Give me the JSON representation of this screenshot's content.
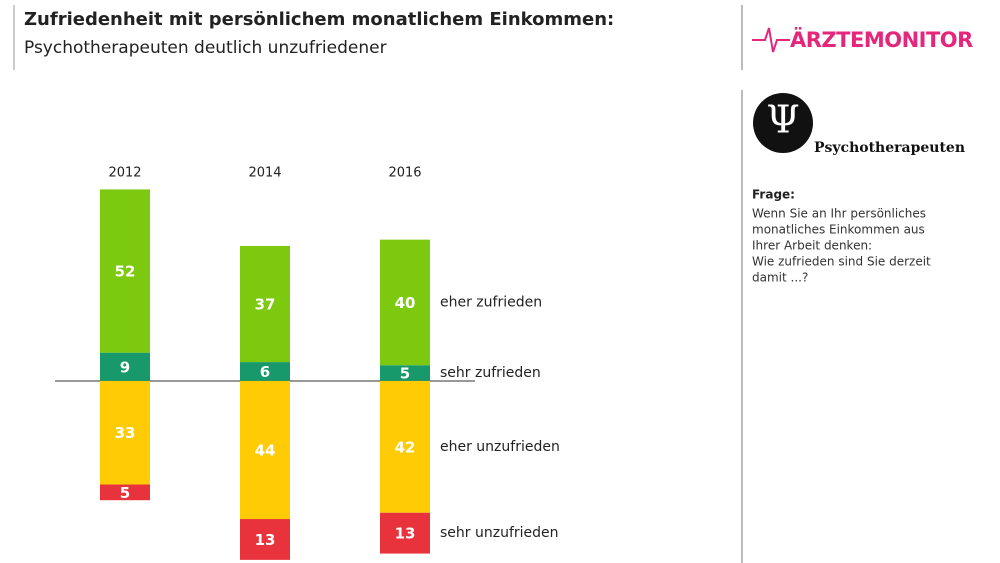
{
  "chart_data": {
    "type": "diverging_stacked_bar",
    "title": "Zufriedenheit mit persönlichem monatlichem Einkommen:",
    "subtitle": "Psychotherapeuten deutlich unzufriedener",
    "categories": [
      "2012",
      "2014",
      "2016"
    ],
    "ylim": [
      -58,
      64
    ],
    "series": [
      {
        "name": "sehr zufrieden",
        "color": "#17996b",
        "values": [
          9,
          6,
          5
        ]
      },
      {
        "name": "eher zufrieden",
        "color": "#7cc90f",
        "values": [
          52,
          37,
          40
        ]
      },
      {
        "name": "eher unzufrieden",
        "color": "#ffcb05",
        "values": [
          -33,
          -44,
          -42
        ],
        "value_labels": [
          "33",
          "44",
          "42"
        ]
      },
      {
        "name": "sehr unzufrieden",
        "color": "#e8333c",
        "values": [
          -5,
          -13,
          -13
        ],
        "value_labels": [
          "5",
          "13",
          "13"
        ]
      }
    ]
  },
  "logo": {
    "text": "ÄRZTEMONITOR"
  },
  "sidebar": {
    "icon": "Ψ",
    "group": "Psychotherapeuten",
    "question_label": "Frage:",
    "question": [
      "Wenn Sie an Ihr persönliches",
      "monatliches Einkommen aus",
      "Ihrer Arbeit denken:",
      "Wie zufrieden sind Sie derzeit",
      "damit ...?"
    ]
  }
}
